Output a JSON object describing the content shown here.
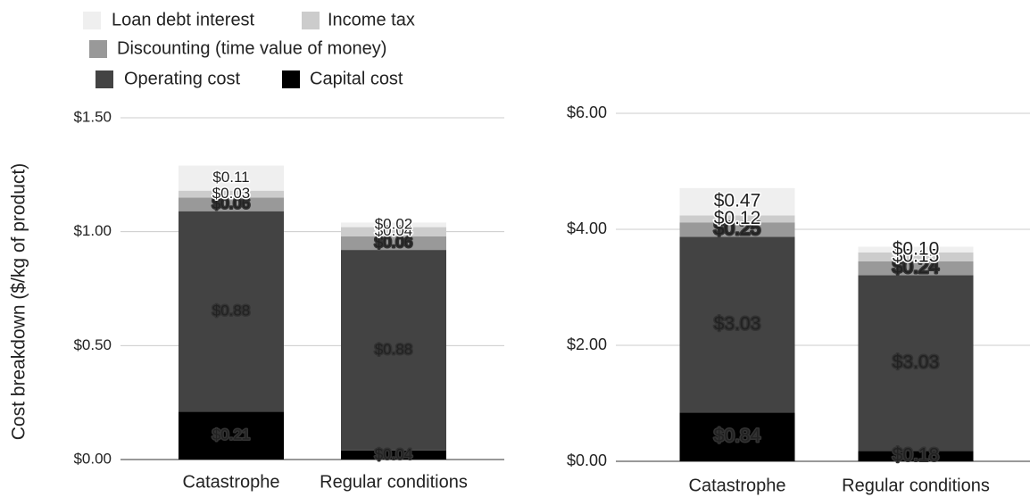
{
  "chart_data": [
    {
      "type": "bar",
      "stacked": true,
      "y_label": "Cost breakdown ($/kg of product)",
      "categories": [
        "Catastrophe",
        "Regular conditions"
      ],
      "ylim": [
        0,
        1.5
      ],
      "yticks": [
        {
          "value": 0,
          "label": "$0.00"
        },
        {
          "value": 0.5,
          "label": "$0.50"
        },
        {
          "value": 1,
          "label": "$1.00"
        },
        {
          "value": 1.5,
          "label": "$1.50"
        }
      ],
      "grid": true,
      "series": [
        {
          "name": "Capital cost",
          "color": "#000000",
          "values": [
            0.21,
            0.04
          ],
          "value_labels": [
            "$0.21",
            "$0.04"
          ]
        },
        {
          "name": "Operating cost",
          "color": "#434343",
          "values": [
            0.88,
            0.88
          ],
          "value_labels": [
            "$0.88",
            "$0.88"
          ]
        },
        {
          "name": "Discounting (time value of money)",
          "color": "#999999",
          "values": [
            0.06,
            0.06
          ],
          "value_labels": [
            "$0.06",
            "$0.06"
          ]
        },
        {
          "name": "Income tax",
          "color": "#cccccc",
          "values": [
            0.03,
            0.04
          ],
          "value_labels": [
            "$0.03",
            "$0.04"
          ]
        },
        {
          "name": "Loan debt interest",
          "color": "#efefef",
          "values": [
            0.11,
            0.02
          ],
          "value_labels": [
            "$0.11",
            "$0.02"
          ]
        }
      ]
    },
    {
      "type": "bar",
      "stacked": true,
      "categories": [
        "Catastrophe",
        "Regular conditions"
      ],
      "ylim": [
        0,
        6
      ],
      "yticks": [
        {
          "value": 0,
          "label": "$0.00"
        },
        {
          "value": 2,
          "label": "$2.00"
        },
        {
          "value": 4,
          "label": "$4.00"
        },
        {
          "value": 6,
          "label": "$6.00"
        }
      ],
      "grid": true,
      "series": [
        {
          "color": "#000000",
          "values": [
            0.84,
            0.18
          ],
          "value_labels": [
            "$0.84",
            "$0.18"
          ]
        },
        {
          "color": "#434343",
          "values": [
            3.03,
            3.03
          ],
          "value_labels": [
            "$3.03",
            "$3.03"
          ]
        },
        {
          "color": "#999999",
          "values": [
            0.25,
            0.24
          ],
          "value_labels": [
            "$0.25",
            "$0.24"
          ]
        },
        {
          "color": "#cccccc",
          "values": [
            0.12,
            0.15
          ],
          "value_labels": [
            "$0.12",
            "$0.15"
          ]
        },
        {
          "color": "#efefef",
          "values": [
            0.47,
            0.1
          ],
          "value_labels": [
            "$0.47",
            "$0.10"
          ]
        }
      ]
    }
  ]
}
